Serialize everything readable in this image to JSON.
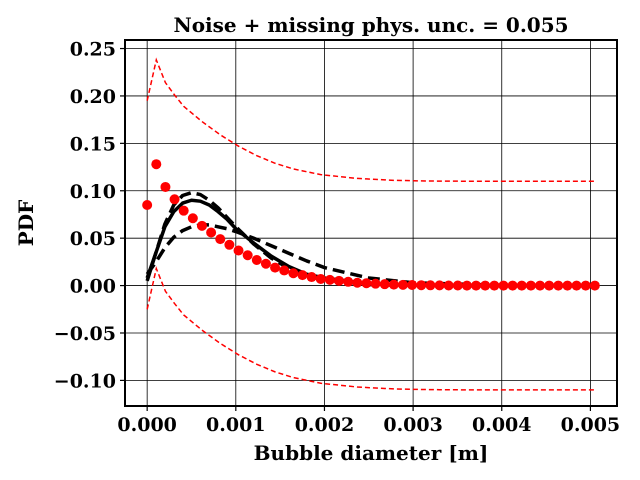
{
  "chart_data": {
    "type": "line",
    "title": "Noise + missing phys. unc. = 0.055",
    "xlabel": "Bubble diameter [m]",
    "ylabel": "PDF",
    "xlim": [
      -0.00025,
      0.0053
    ],
    "ylim": [
      -0.127,
      0.259
    ],
    "grid": true,
    "x_ticks": [
      0.0,
      0.001,
      0.002,
      0.003,
      0.004,
      0.005
    ],
    "x_tick_labels": [
      "0.000",
      "0.001",
      "0.002",
      "0.003",
      "0.004",
      "0.005"
    ],
    "y_ticks": [
      0.25,
      0.2,
      0.15,
      0.1,
      0.05,
      0.0,
      -0.05,
      -0.1
    ],
    "y_tick_labels": [
      "0.25",
      "0.20",
      "0.15",
      "0.10",
      "0.05",
      "0.00",
      "−0.05",
      "−0.10"
    ],
    "dots": {
      "color": "#ff0000",
      "x_start": 0.0,
      "x_end": 0.00505,
      "values": [
        0.085,
        0.128,
        0.104,
        0.091,
        0.079,
        0.071,
        0.063,
        0.056,
        0.049,
        0.043,
        0.037,
        0.032,
        0.027,
        0.023,
        0.019,
        0.016,
        0.013,
        0.011,
        0.009,
        0.007,
        0.006,
        0.005,
        0.004,
        0.003,
        0.0025,
        0.002,
        0.0015,
        0.001,
        0.0008,
        0.0006,
        0.0004,
        0.0003,
        0.0002,
        0.0001,
        0.0001,
        0,
        0,
        0,
        0,
        0,
        0,
        0,
        0,
        0,
        0,
        0,
        0,
        0,
        0,
        0
      ]
    },
    "uncertainty_band": {
      "color": "#ff0000",
      "half_width": 0.11
    },
    "curve_x": [
      0,
      0.0001,
      0.0002,
      0.0003,
      0.0004,
      0.0005,
      0.0006,
      0.0007,
      0.0008,
      0.0009,
      0.001,
      0.0012,
      0.0014,
      0.0016,
      0.0018,
      0.002,
      0.0025,
      0.003,
      0.004,
      0.005
    ],
    "series": [
      {
        "style": "solid",
        "color": "#000000",
        "values": [
          0.008,
          0.035,
          0.062,
          0.078,
          0.087,
          0.09,
          0.089,
          0.085,
          0.078,
          0.07,
          0.06,
          0.045,
          0.031,
          0.02,
          0.012,
          0.008,
          0.002,
          0.0005,
          0,
          0
        ]
      },
      {
        "style": "dashed",
        "color": "#000000",
        "values": [
          0.005,
          0.035,
          0.065,
          0.085,
          0.095,
          0.098,
          0.096,
          0.09,
          0.082,
          0.072,
          0.062,
          0.044,
          0.029,
          0.018,
          0.01,
          0.006,
          0.001,
          0.0002,
          0,
          0
        ]
      },
      {
        "style": "dashed",
        "color": "#000000",
        "values": [
          0.012,
          0.025,
          0.04,
          0.051,
          0.058,
          0.062,
          0.064,
          0.064,
          0.062,
          0.06,
          0.057,
          0.05,
          0.042,
          0.034,
          0.026,
          0.019,
          0.008,
          0.003,
          0.0003,
          0
        ]
      }
    ]
  }
}
